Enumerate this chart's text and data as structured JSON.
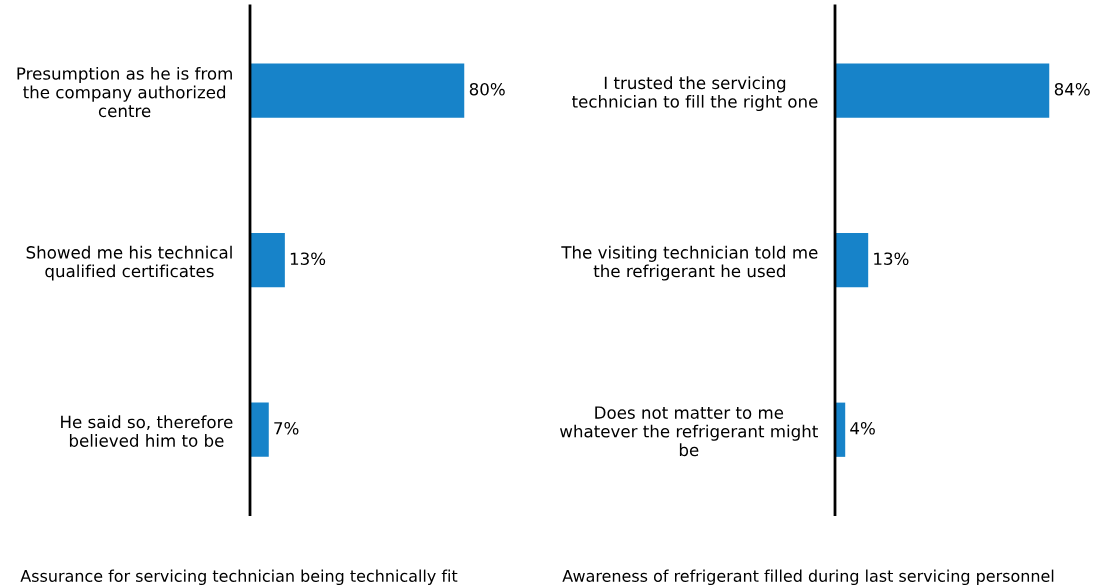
{
  "chart_data": [
    {
      "type": "bar",
      "orientation": "horizontal",
      "xlabel": "Assurance for servicing technician being technically fit",
      "categories": [
        "Presumption as he is from the company authorized centre",
        "Showed me his technical qualified certificates",
        "He said so, therefore believed him to be"
      ],
      "values": [
        80,
        13,
        7
      ],
      "value_labels": [
        "80%",
        "13%",
        "7%"
      ],
      "color": "#1783c9",
      "tick_labels": "y"
    },
    {
      "type": "bar",
      "orientation": "horizontal",
      "xlabel": "Awareness of refrigerant filled during last servicing personnel",
      "categories": [
        "I trusted the servicing technician to fill the right one",
        "The visiting technician told me the refrigerant he used",
        "Does not matter to me whatever the refrigerant might be"
      ],
      "values": [
        84,
        13,
        4
      ],
      "value_labels": [
        "84%",
        "13%",
        "4%"
      ],
      "color": "#1783c9",
      "tick_labels": "y"
    }
  ]
}
